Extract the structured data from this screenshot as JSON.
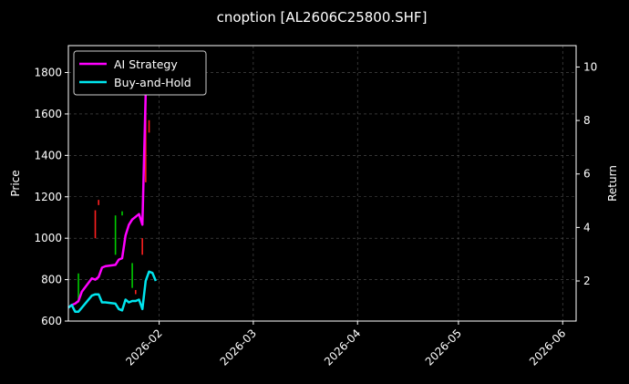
{
  "chart_data": {
    "type": "line",
    "title": "cnoption [AL2606C25800.SHF]",
    "ylabel": "Price",
    "y2label": "Return",
    "x_tick_labels": [
      "2026-02",
      "2026-03",
      "2026-04",
      "2026-05",
      "2026-06"
    ],
    "x_ticks": [
      "2026-02-01",
      "2026-03-01",
      "2026-04-01",
      "2026-05-01",
      "2026-06-01"
    ],
    "xlim": [
      "2026-01-05",
      "2026-06-05"
    ],
    "ylim": [
      600,
      1930
    ],
    "y_ticks": [
      600,
      800,
      1000,
      1200,
      1400,
      1600,
      1800
    ],
    "y_tick_labels": [
      "600",
      "800",
      "1000",
      "1200",
      "1400",
      "1600",
      "1800"
    ],
    "y2lim": [
      0.5,
      10.8
    ],
    "y2_ticks": [
      2,
      4,
      6,
      8,
      10
    ],
    "y2_tick_labels": [
      "2",
      "4",
      "6",
      "8",
      "10"
    ],
    "grid": true,
    "legend_position": "top-left",
    "colors": {
      "background": "#000000",
      "axes": "#ffffff",
      "grid": "#555555",
      "ai": "#ff00ff",
      "bh": "#00e5ee",
      "up": "#00cc00",
      "down": "#ff2020"
    },
    "series": [
      {
        "name": "AI Strategy",
        "axis": "right",
        "x": [
          "2026-01-05",
          "2026-01-06",
          "2026-01-07",
          "2026-01-08",
          "2026-01-09",
          "2026-01-12",
          "2026-01-13",
          "2026-01-14",
          "2026-01-15",
          "2026-01-16",
          "2026-01-19",
          "2026-01-20",
          "2026-01-21",
          "2026-01-22",
          "2026-01-23",
          "2026-01-24",
          "2026-01-25",
          "2026-01-26",
          "2026-01-27",
          "2026-01-28",
          "2026-01-29",
          "2026-01-30",
          "2026-01-31"
        ],
        "values": [
          1.0,
          1.1,
          1.15,
          1.25,
          1.6,
          2.1,
          2.05,
          2.15,
          2.5,
          2.55,
          2.6,
          2.8,
          2.85,
          3.7,
          4.1,
          4.3,
          4.4,
          4.5,
          4.1,
          9.0,
          10.2,
          10.1,
          10.0
        ]
      },
      {
        "name": "Buy-and-Hold",
        "axis": "right",
        "x": [
          "2026-01-05",
          "2026-01-06",
          "2026-01-07",
          "2026-01-08",
          "2026-01-09",
          "2026-01-12",
          "2026-01-13",
          "2026-01-14",
          "2026-01-15",
          "2026-01-16",
          "2026-01-19",
          "2026-01-20",
          "2026-01-21",
          "2026-01-22",
          "2026-01-23",
          "2026-01-24",
          "2026-01-25",
          "2026-01-26",
          "2026-01-27",
          "2026-01-28",
          "2026-01-29",
          "2026-01-30",
          "2026-01-31"
        ],
        "values": [
          1.0,
          1.1,
          0.85,
          0.85,
          1.0,
          1.45,
          1.5,
          1.5,
          1.2,
          1.2,
          1.15,
          0.95,
          0.9,
          1.3,
          1.2,
          1.25,
          1.25,
          1.3,
          0.95,
          2.0,
          2.35,
          2.3,
          2.0
        ]
      }
    ],
    "candles": [
      {
        "x": "2026-01-08",
        "low": 690,
        "high": 830,
        "color": "up"
      },
      {
        "x": "2026-01-13",
        "low": 1000,
        "high": 1135,
        "color": "down"
      },
      {
        "x": "2026-01-14",
        "low": 1160,
        "high": 1185,
        "color": "down"
      },
      {
        "x": "2026-01-19",
        "low": 920,
        "high": 1110,
        "color": "up"
      },
      {
        "x": "2026-01-21",
        "low": 1110,
        "high": 1130,
        "color": "up"
      },
      {
        "x": "2026-01-24",
        "low": 760,
        "high": 880,
        "color": "up"
      },
      {
        "x": "2026-01-25",
        "low": 730,
        "high": 750,
        "color": "down"
      },
      {
        "x": "2026-01-27",
        "low": 920,
        "high": 1000,
        "color": "down"
      },
      {
        "x": "2026-01-28",
        "low": 1270,
        "high": 1700,
        "color": "down"
      },
      {
        "x": "2026-01-29",
        "low": 1510,
        "high": 1570,
        "color": "down"
      }
    ]
  }
}
